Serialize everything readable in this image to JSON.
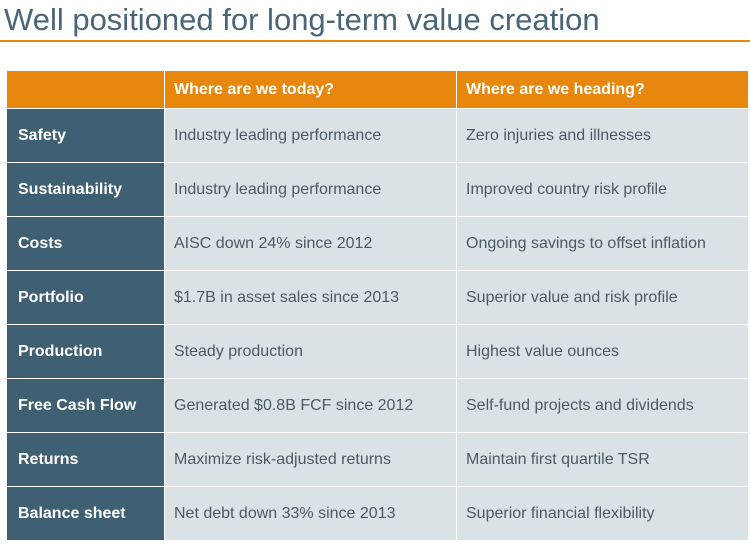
{
  "title": "Well positioned for long-term value creation",
  "colors": {
    "accent": "#e8870e",
    "title_text": "#4a6478",
    "row_header": "#3f5f72",
    "cell_fill": "#dae2e6"
  },
  "table": {
    "headers": [
      "",
      "Where are we today?",
      "Where are we heading?"
    ],
    "rows": [
      {
        "label": "Safety",
        "today": "Industry leading performance",
        "heading": "Zero injuries and illnesses"
      },
      {
        "label": "Sustainability",
        "today": "Industry leading performance",
        "heading": "Improved country risk profile"
      },
      {
        "label": "Costs",
        "today": "AISC down 24% since 2012",
        "heading": "Ongoing savings to offset inflation"
      },
      {
        "label": "Portfolio",
        "today": "$1.7B in asset sales since 2013",
        "heading": "Superior value and risk profile"
      },
      {
        "label": "Production",
        "today": "Steady production",
        "heading": "Highest value ounces"
      },
      {
        "label": "Free Cash Flow",
        "today": "Generated $0.8B FCF since 2012",
        "heading": "Self-fund projects and dividends"
      },
      {
        "label": "Returns",
        "today": "Maximize risk-adjusted returns",
        "heading": "Maintain first quartile TSR"
      },
      {
        "label": "Balance sheet",
        "today": "Net debt down 33% since 2013",
        "heading": "Superior financial flexibility"
      }
    ]
  }
}
